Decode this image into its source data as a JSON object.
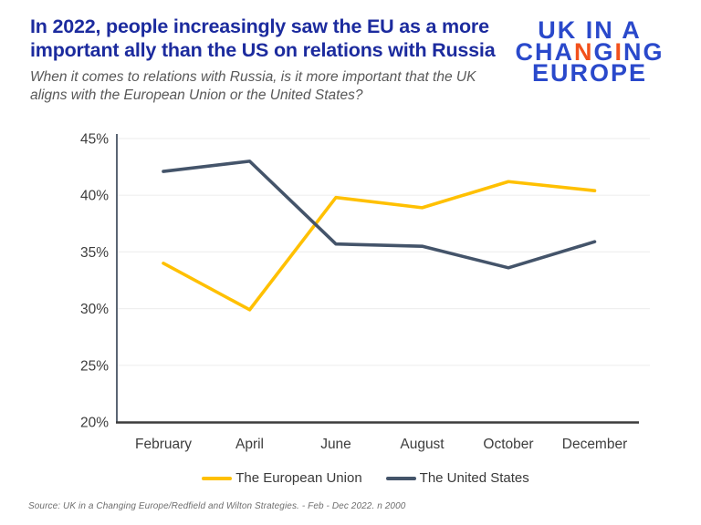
{
  "header": {
    "title": "In 2022, people increasingly saw the EU as a more important ally than the US on relations with Russia",
    "subtitle": "When it comes to relations with Russia, is it more important that the UK aligns with the European Union or the United States?"
  },
  "logo": {
    "name": "UK in a Changing Europe",
    "lines": [
      {
        "segments": [
          {
            "text": "UK IN A",
            "color": "#2a49cb"
          }
        ]
      },
      {
        "segments": [
          {
            "text": "CHA",
            "color": "#2a49cb"
          },
          {
            "text": "N",
            "color": "#f2511c"
          },
          {
            "text": "G",
            "color": "#2a49cb"
          },
          {
            "text": "I",
            "color": "#f2511c"
          },
          {
            "text": "NG",
            "color": "#2a49cb"
          }
        ]
      },
      {
        "segments": [
          {
            "text": "EUROPE",
            "color": "#2a49cb"
          }
        ]
      }
    ]
  },
  "chart_data": {
    "type": "line",
    "categories": [
      "February",
      "April",
      "June",
      "August",
      "October",
      "December"
    ],
    "series": [
      {
        "name": "The European Union",
        "color": "#FFC000",
        "values": [
          34,
          29.9,
          39.8,
          38.9,
          41.2,
          40.4
        ]
      },
      {
        "name": "The United States",
        "color": "#44546A",
        "values": [
          42.1,
          43,
          35.7,
          35.5,
          33.6,
          35.9
        ]
      }
    ],
    "ylim": [
      20,
      45
    ],
    "yticks": [
      20,
      25,
      30,
      35,
      40,
      45
    ],
    "ytick_labels": [
      "20%",
      "25%",
      "30%",
      "35%",
      "40%",
      "45%"
    ],
    "xlabel": "",
    "ylabel": "",
    "grid": "horizontal",
    "legend_position": "bottom"
  },
  "source": "Source: UK in a Changing Europe/Redfield and Wilton Strategies. -  Feb - Dec 2022. n 2000",
  "colors": {
    "title_blue": "#1c2b9e",
    "subtitle_gray": "#595959",
    "logo_blue": "#2a49cb",
    "logo_orange": "#f2511c",
    "eu_yellow": "#FFC000",
    "us_slate": "#44546A",
    "grid": "#efefef",
    "axis_y": "#5b6573",
    "axis_x": "#3c3c3c",
    "tick_label": "#3d3d3d",
    "legend_label": "#3a3a3a",
    "source_gray": "#6e6e6e"
  }
}
